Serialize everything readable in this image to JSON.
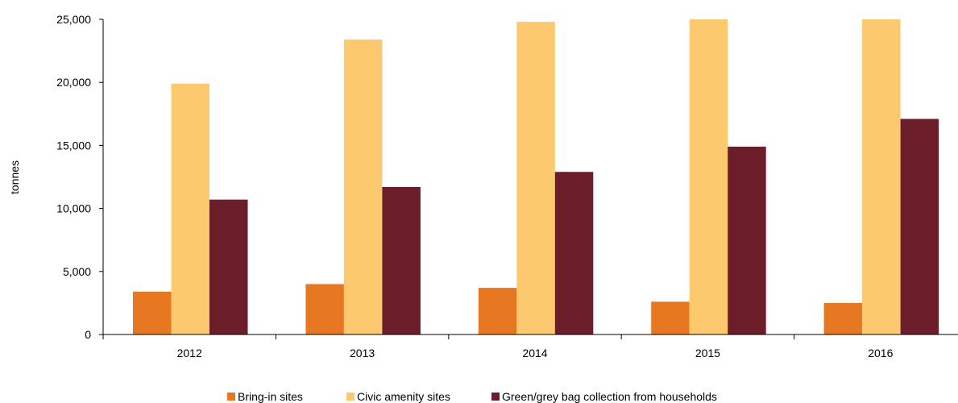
{
  "chart_data": {
    "type": "bar",
    "title": "",
    "xlabel": "",
    "ylabel": "tonnes",
    "categories": [
      "2012",
      "2013",
      "2014",
      "2015",
      "2016"
    ],
    "ylim": [
      0,
      25000
    ],
    "yticks": [
      0,
      5000,
      10000,
      15000,
      20000,
      25000
    ],
    "ytick_labels": [
      "0",
      "5,000",
      "10,000",
      "15,000",
      "20,000",
      "25,000"
    ],
    "grid": false,
    "legend_position": "bottom",
    "series": [
      {
        "name": "Bring-in sites",
        "color": "#E87722",
        "values": [
          3400,
          4000,
          3700,
          2600,
          2500
        ]
      },
      {
        "name": "Civic amenity sites",
        "color": "#FDC96F",
        "values": [
          19900,
          23400,
          24800,
          25000,
          25000
        ]
      },
      {
        "name": "Green/grey bag collection from households",
        "color": "#6B1D2A",
        "values": [
          10700,
          11700,
          12900,
          14900,
          17100
        ]
      }
    ]
  }
}
